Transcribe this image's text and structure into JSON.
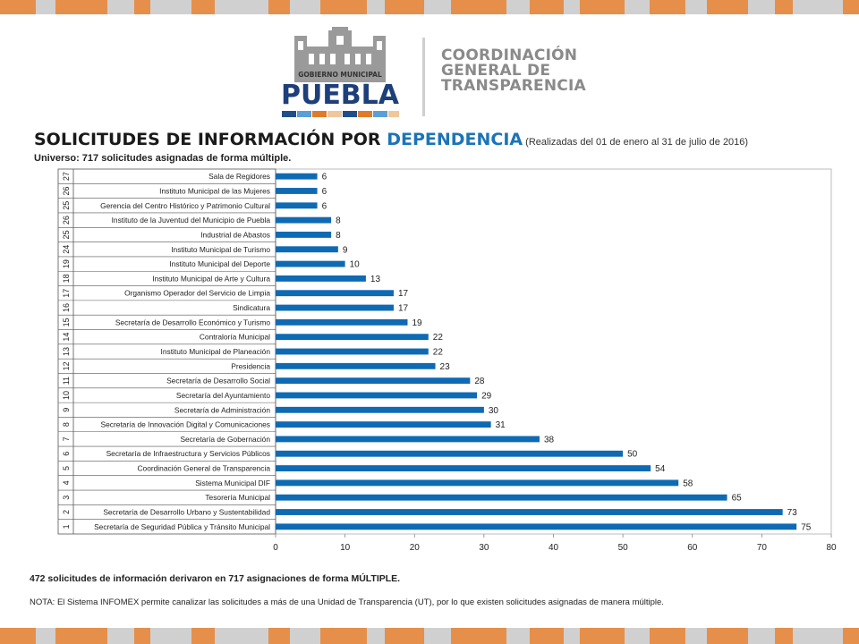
{
  "header": {
    "logo_caption": "GOBIERNO MUNICIPAL",
    "logo_name": "PUEBLA",
    "org_line1": "COORDINACIÓN",
    "org_line2": "GENERAL DE",
    "org_line3": "TRANSPARENCIA"
  },
  "colors": {
    "bar": "#0f6ab4",
    "accent_blue": "#1c74b8",
    "stripe": [
      "#1f4e8c",
      "#e07b2a",
      "#f0c79a",
      "#5aa0d6",
      "#c8c8c8",
      "#0f6ab4"
    ]
  },
  "titles": {
    "main_part1": "SOLICITUDES DE INFORMACIÓN POR ",
    "main_part2": "DEPENDENCIA",
    "main_part3": " (Realizadas del 01 de enero al 31 de julio de 2016)",
    "universe": "Universo: 717 solicitudes asignadas  de forma múltiple."
  },
  "chart_data": {
    "type": "bar",
    "orientation": "horizontal",
    "categories": [
      {
        "rank": "27",
        "label": "Sala de Regidores",
        "value": 6
      },
      {
        "rank": "26",
        "label": "Instituto Municipal de las Mujeres",
        "value": 6
      },
      {
        "rank": "25",
        "label": "Gerencia del Centro Histórico y Patrimonio Cultural",
        "value": 6
      },
      {
        "rank": "26",
        "label": "Instituto de la Juventud del Municipio de Puebla",
        "value": 8
      },
      {
        "rank": "25",
        "label": "Industrial de Abastos",
        "value": 8
      },
      {
        "rank": "24",
        "label": "Instituto Municipal de Turismo",
        "value": 9
      },
      {
        "rank": "19",
        "label": "Instituto Municipal del Deporte",
        "value": 10
      },
      {
        "rank": "18",
        "label": "Instituto Municipal de Arte y Cultura",
        "value": 13
      },
      {
        "rank": "17",
        "label": "Organismo Operador del Servicio de Limpia",
        "value": 17
      },
      {
        "rank": "16",
        "label": "Sindicatura",
        "value": 17
      },
      {
        "rank": "15",
        "label": "Secretaría de Desarrollo Económico  y Turismo",
        "value": 19
      },
      {
        "rank": "14",
        "label": "Contraloría Municipal",
        "value": 22
      },
      {
        "rank": "13",
        "label": "Instituto Municipal de Planeación",
        "value": 22
      },
      {
        "rank": "12",
        "label": "Presidencia",
        "value": 23
      },
      {
        "rank": "11",
        "label": "Secretaría de Desarrollo Social",
        "value": 28
      },
      {
        "rank": "10",
        "label": "Secretaría del Ayuntamiento",
        "value": 29
      },
      {
        "rank": "9",
        "label": "Secretaría de Administración",
        "value": 30
      },
      {
        "rank": "8",
        "label": "Secretaría de Innovación Digital y Comunicaciones",
        "value": 31
      },
      {
        "rank": "7",
        "label": "Secretaría de Gobernación",
        "value": 38
      },
      {
        "rank": "6",
        "label": "Secretaría de Infraestructura y Servicios Públicos",
        "value": 50
      },
      {
        "rank": "5",
        "label": "Coordinación General de Transparencia",
        "value": 54
      },
      {
        "rank": "4",
        "label": "Sistema Municipal DIF",
        "value": 58
      },
      {
        "rank": "3",
        "label": "Tesorería Municipal",
        "value": 65
      },
      {
        "rank": "2",
        "label": "Secretaría de Desarrollo Urbano y Sustentabilidad",
        "value": 73
      },
      {
        "rank": "1",
        "label": "Secretaría de Seguridad Pública y Tránsito Municipal",
        "value": 75
      }
    ],
    "xlim": [
      0,
      80
    ],
    "xticks": [
      0,
      10,
      20,
      30,
      40,
      50,
      60,
      70,
      80
    ],
    "grid": false,
    "legend": "none"
  },
  "footer": {
    "summary": "472 solicitudes de información derivaron en 717 asignaciones de forma MÚLTIPLE.",
    "note": "NOTA: El Sistema INFOMEX permite canalizar las solicitudes a más de una Unidad de Transparencia (UT), por lo que existen solicitudes asignadas de manera múltiple."
  }
}
